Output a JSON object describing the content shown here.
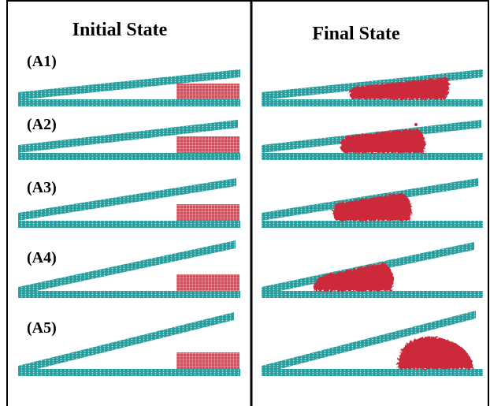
{
  "columns": [
    {
      "title": "Initial State"
    },
    {
      "title": "Final State"
    }
  ],
  "rows": [
    {
      "label": "(A1)"
    },
    {
      "label": "(A2)"
    },
    {
      "label": "(A3)"
    },
    {
      "label": "(A4)"
    },
    {
      "label": "(A5)"
    }
  ],
  "colors": {
    "plate": "#2a9e9e",
    "plate_dot": "#bfe9e9",
    "droplet": "#cc2c3b",
    "droplet_grid": "#f4a5ad",
    "border": "#000000"
  }
}
